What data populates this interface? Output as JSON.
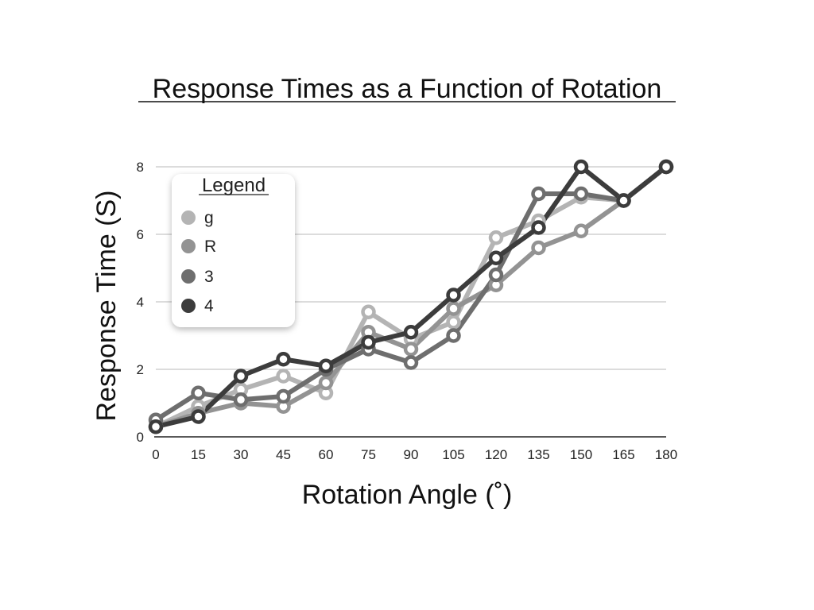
{
  "chart_data": {
    "type": "line",
    "title": "Response Times as a Function of Rotation",
    "xlabel": "Rotation Angle (˚)",
    "ylabel": "Response Time (S)",
    "x": [
      0,
      15,
      30,
      45,
      60,
      75,
      90,
      105,
      120,
      135,
      150,
      165,
      180
    ],
    "xlim": [
      0,
      180
    ],
    "ylim": [
      0,
      8
    ],
    "yticks": [
      0,
      2,
      4,
      6,
      8
    ],
    "grid": true,
    "legend": {
      "title": "Legend",
      "position": "top-left"
    },
    "series": [
      {
        "name": "g",
        "color": "#b4b4b4",
        "values": [
          0.3,
          0.9,
          1.4,
          1.8,
          1.3,
          3.7,
          2.9,
          3.4,
          5.9,
          6.4,
          7.1,
          7.0,
          8.0
        ]
      },
      {
        "name": "R",
        "color": "#939393",
        "values": [
          0.3,
          0.7,
          1.0,
          0.9,
          1.6,
          3.1,
          2.6,
          3.8,
          4.5,
          5.6,
          6.1,
          7.0,
          8.0
        ]
      },
      {
        "name": "3",
        "color": "#6e6e6e",
        "values": [
          0.5,
          1.3,
          1.1,
          1.2,
          2.0,
          2.6,
          2.2,
          3.0,
          4.8,
          7.2,
          7.2,
          7.0,
          8.0
        ]
      },
      {
        "name": "4",
        "color": "#3c3c3c",
        "values": [
          0.3,
          0.6,
          1.8,
          2.3,
          2.1,
          2.8,
          3.1,
          4.2,
          5.3,
          6.2,
          8.0,
          7.0,
          8.0
        ]
      }
    ]
  }
}
